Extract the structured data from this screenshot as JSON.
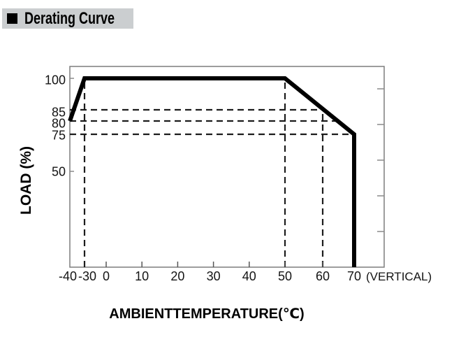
{
  "header": {
    "title": "Derating Curve"
  },
  "chart_data": {
    "type": "line",
    "title": "Derating Curve",
    "xlabel": "AMBIENTTEMPERATURE(℃)",
    "ylabel": "LOAD (%)",
    "x_axis_annotation": "(VERTICAL)",
    "xlim": [
      -40,
      79
    ],
    "ylim": [
      0,
      106
    ],
    "grid": false,
    "legend": "none",
    "x_ticks": [
      -40,
      -30,
      0,
      10,
      20,
      30,
      40,
      50,
      60,
      70
    ],
    "y_tick_labels_left": [
      100,
      85,
      80,
      75,
      50
    ],
    "y_ticks_right_unlabeled": [
      20,
      40,
      60,
      80,
      100
    ],
    "series": [
      {
        "name": "derating-curve",
        "points": [
          [
            -40,
            80
          ],
          [
            -30,
            100
          ],
          [
            50,
            100
          ],
          [
            70,
            75
          ],
          [
            70,
            0
          ]
        ]
      }
    ],
    "dashed_h_guides": [
      {
        "load": 85,
        "t_end": 60
      },
      {
        "load": 80,
        "t_end": 66
      },
      {
        "load": 75,
        "t_end": 70
      }
    ],
    "dashed_v_guides": [
      {
        "t": -30,
        "load_top": 100
      },
      {
        "t": 50,
        "load_top": 100
      },
      {
        "t": 60,
        "load_top": 85
      }
    ],
    "colors": {
      "curve": "#000000",
      "guides": "#1c1c1c",
      "frame": "#7d7d7d",
      "title_bar_bg": "#cbced0"
    }
  }
}
